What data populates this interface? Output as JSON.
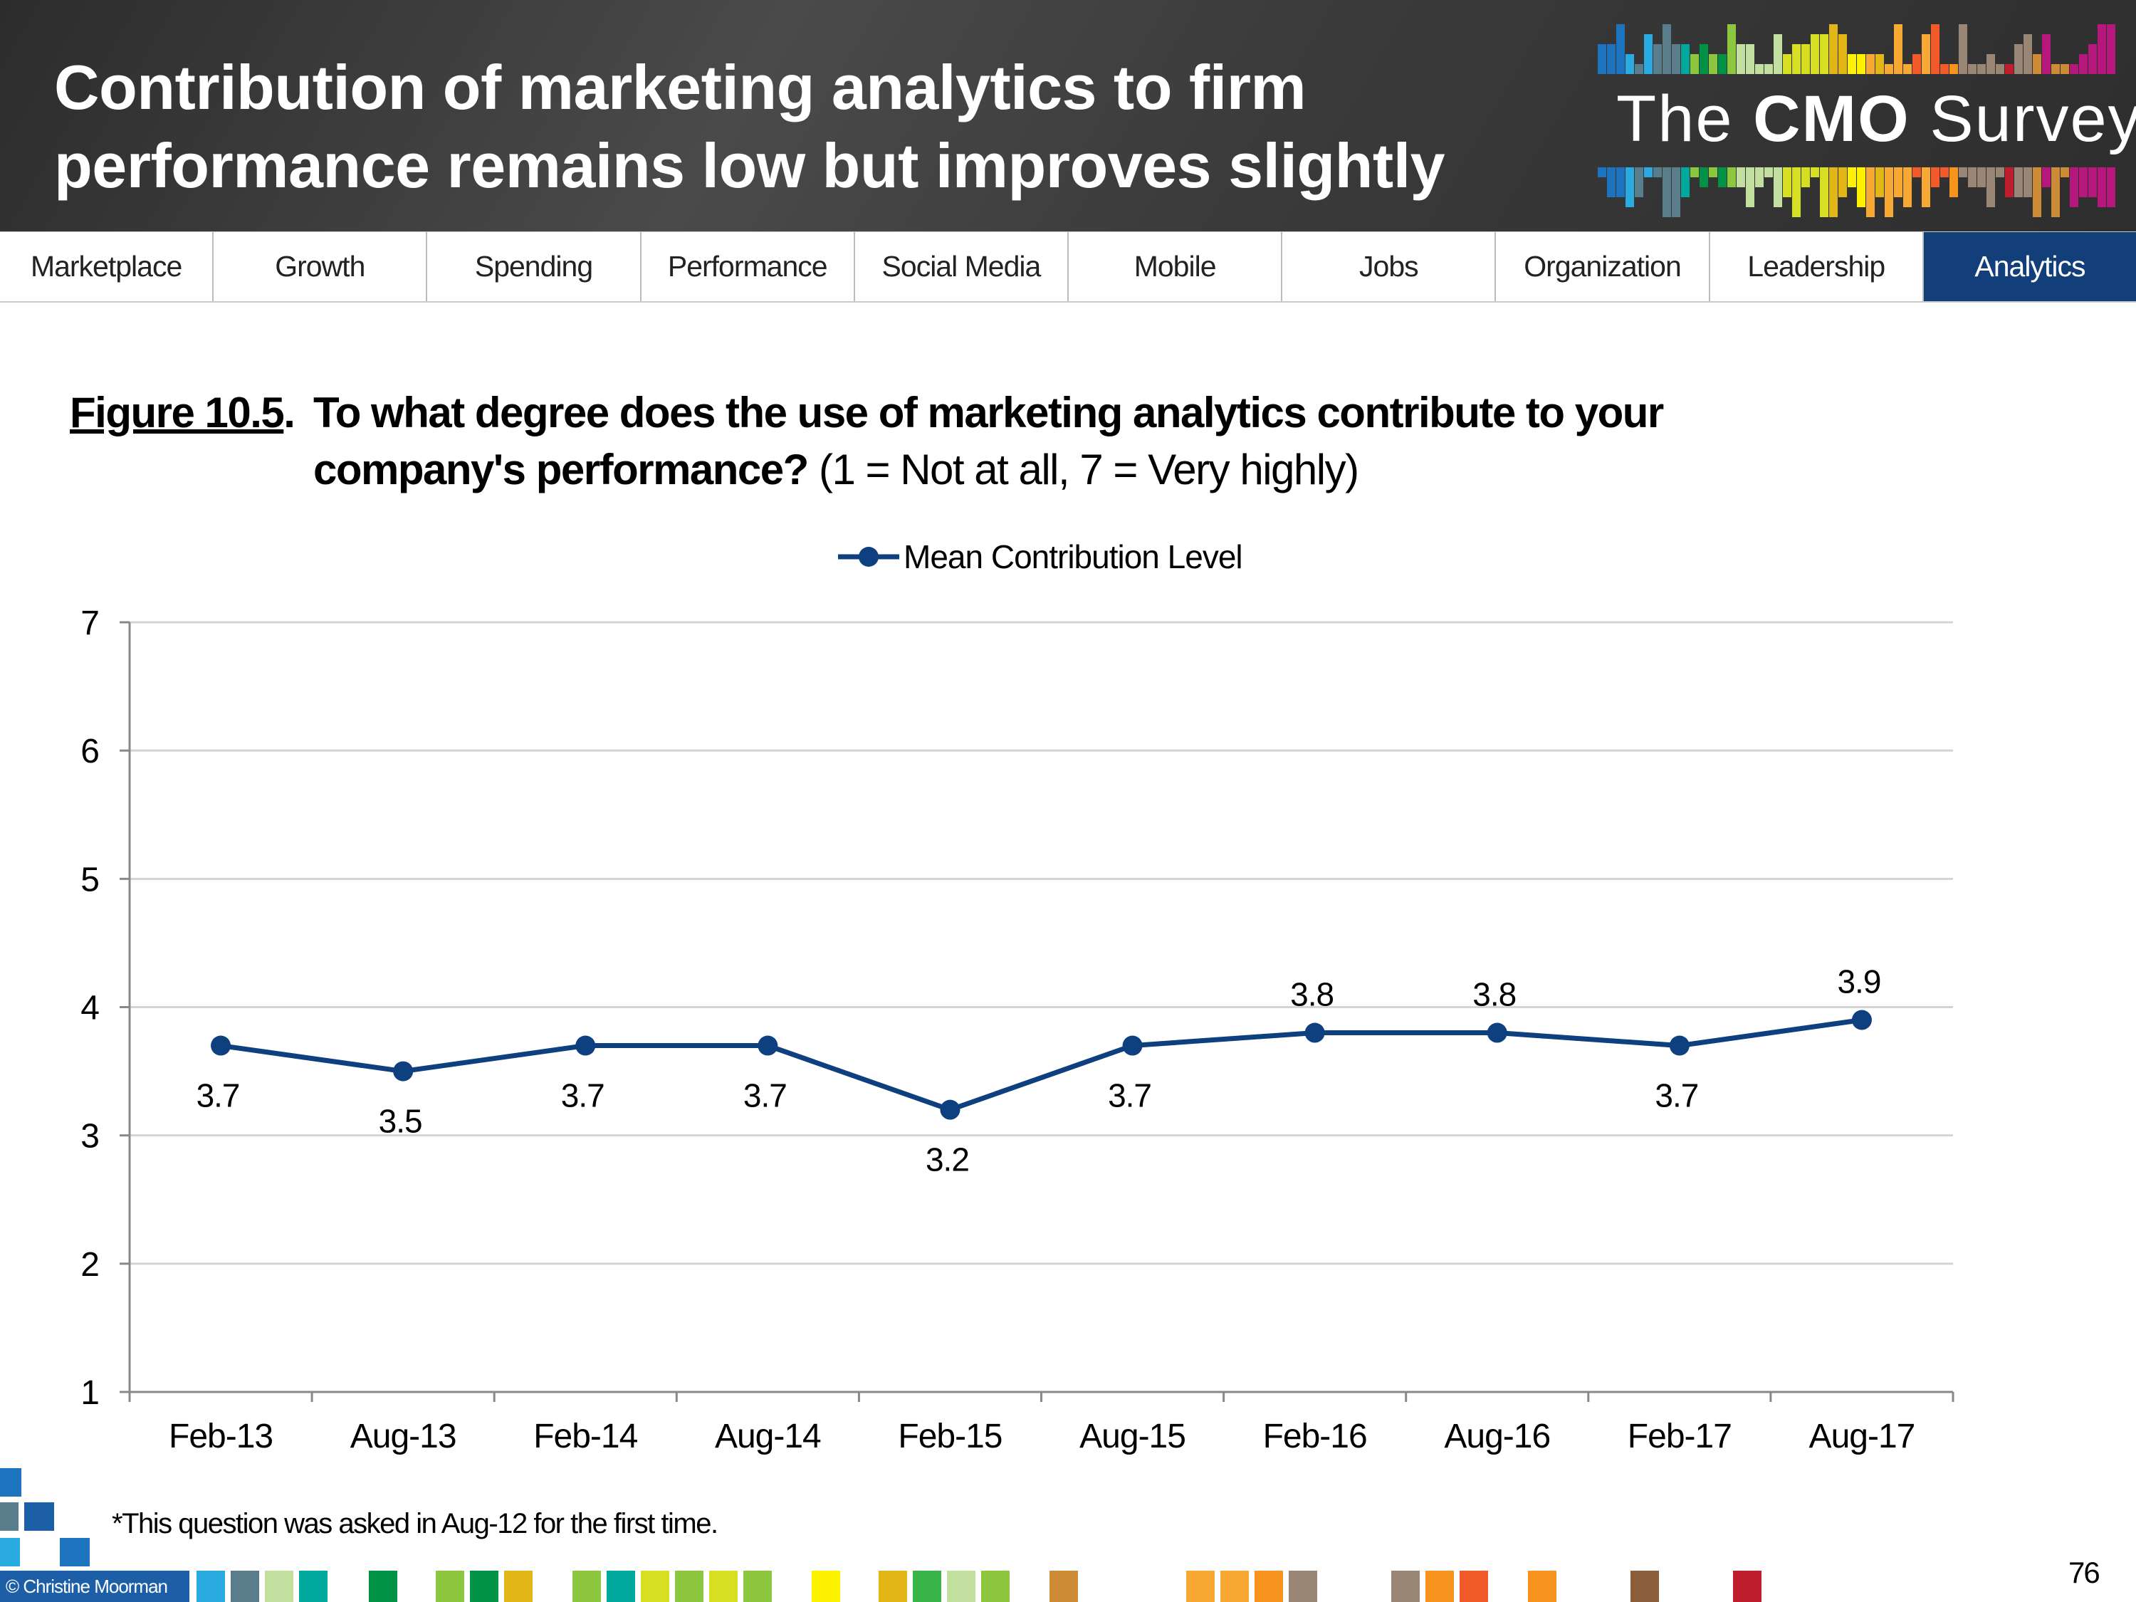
{
  "header": {
    "title_line1": "Contribution of marketing analytics to firm",
    "title_line2": "performance remains low but improves slightly",
    "logo": {
      "prefix": "The",
      "bold": "CMO",
      "suffix": "Survey"
    }
  },
  "nav": {
    "tabs": [
      {
        "label": "Marketplace",
        "active": false
      },
      {
        "label": "Growth",
        "active": false
      },
      {
        "label": "Spending",
        "active": false
      },
      {
        "label": "Performance",
        "active": false
      },
      {
        "label": "Social Media",
        "active": false
      },
      {
        "label": "Mobile",
        "active": false
      },
      {
        "label": "Jobs",
        "active": false
      },
      {
        "label": "Organization",
        "active": false
      },
      {
        "label": "Leadership",
        "active": false
      },
      {
        "label": "Analytics",
        "active": true
      }
    ],
    "active_color": "#123f7a"
  },
  "figure": {
    "label": "Figure 10.5",
    "label_suffix": ".",
    "question_bold": "To what degree does the use of marketing analytics contribute to your company's performance?",
    "question_scale": "(1 = Not at all, 7 = Very highly)"
  },
  "chart_data": {
    "type": "line",
    "categories": [
      "Feb-13",
      "Aug-13",
      "Feb-14",
      "Aug-14",
      "Feb-15",
      "Aug-15",
      "Feb-16",
      "Aug-16",
      "Feb-17",
      "Aug-17"
    ],
    "series": [
      {
        "name": "Mean Contribution Level",
        "values": [
          3.7,
          3.5,
          3.7,
          3.7,
          3.2,
          3.7,
          3.8,
          3.8,
          3.7,
          3.9
        ],
        "color": "#0e3f7e"
      }
    ],
    "data_labels": [
      "3.7",
      "3.5",
      "3.7",
      "3.7",
      "3.2",
      "3.7",
      "3.8",
      "3.8",
      "3.7",
      "3.9"
    ],
    "label_position": [
      "below",
      "below",
      "below",
      "below",
      "below",
      "below",
      "above",
      "above",
      "below",
      "above"
    ],
    "ylim": [
      1,
      7
    ],
    "yticks": [
      1,
      2,
      3,
      4,
      5,
      6,
      7
    ],
    "grid": true,
    "legend": "top-center",
    "xlabel": "",
    "ylabel": ""
  },
  "footnote": "*This question was asked in Aug-12 for the first time.",
  "footer": {
    "copyright": "© Christine Moorman",
    "page_number": "76"
  }
}
